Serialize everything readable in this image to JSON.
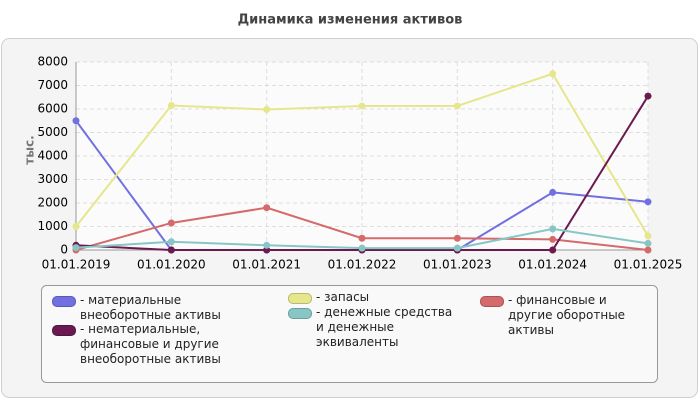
{
  "chart_data": {
    "type": "line",
    "title": "Динамика изменения активов",
    "y_label": "тыс.",
    "categories": [
      "01.01.2019",
      "01.01.2020",
      "01.01.2021",
      "01.01.2022",
      "01.01.2023",
      "01.01.2024",
      "01.01.2025"
    ],
    "series": [
      {
        "name": "- материальные внеоборотные активы",
        "color": "#7070e0",
        "values": [
          5500,
          0,
          0,
          0,
          0,
          2450,
          2050
        ]
      },
      {
        "name": "- запасы",
        "color": "#e6e68c",
        "values": [
          1000,
          6150,
          5980,
          6130,
          6130,
          7500,
          600
        ]
      },
      {
        "name": "- финансовые и другие оборотные активы",
        "color": "#d46a6a",
        "values": [
          0,
          1150,
          1800,
          500,
          500,
          450,
          0
        ]
      },
      {
        "name": "- нематериальные, финансовые и другие внеоборотные активы",
        "color": "#6b1a4f",
        "values": [
          200,
          0,
          0,
          0,
          0,
          0,
          6550
        ]
      },
      {
        "name": "- денежные средства и денежные эквиваленты",
        "color": "#88c6c6",
        "values": [
          100,
          350,
          200,
          80,
          80,
          900,
          280
        ]
      }
    ],
    "ylim": [
      0,
      8000
    ],
    "yticks": [
      0,
      1000,
      2000,
      3000,
      4000,
      5000,
      6000,
      7000,
      8000
    ],
    "grid": true
  }
}
